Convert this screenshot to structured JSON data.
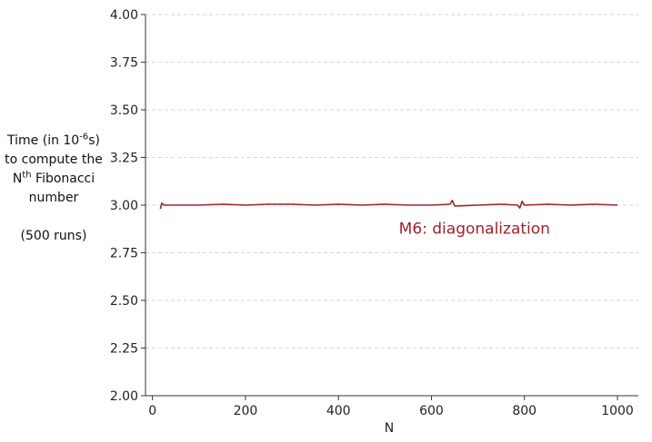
{
  "chart_data": {
    "type": "line",
    "title": "",
    "xlabel": "N",
    "ylabel": {
      "prefix": "Time (in 10",
      "exp": "-6",
      "suffix": "s) to compute the N",
      "nth": "th",
      "tail": "Fibonacci number",
      "runs": "(500 runs)"
    },
    "xlim": [
      -15,
      1045
    ],
    "ylim": [
      2.0,
      4.0
    ],
    "xticks": [
      0,
      200,
      400,
      600,
      800,
      1000
    ],
    "yticks": [
      "2.00",
      "2.25",
      "2.50",
      "2.75",
      "3.00",
      "3.25",
      "3.50",
      "3.75",
      "4.00"
    ],
    "grid": "horizontal dashed",
    "series": [
      {
        "name": "M6: diagonalization",
        "color": "#a1232b",
        "x": [
          17,
          20,
          25,
          50,
          100,
          150,
          200,
          250,
          300,
          350,
          400,
          450,
          500,
          550,
          600,
          640,
          645,
          650,
          700,
          750,
          785,
          790,
          795,
          800,
          850,
          900,
          950,
          1000
        ],
        "y": [
          2.98,
          3.01,
          3.0,
          3.0,
          3.0,
          3.005,
          3.0,
          3.005,
          3.005,
          3.0,
          3.005,
          3.0,
          3.005,
          3.0,
          3.0,
          3.005,
          3.025,
          2.995,
          3.0,
          3.005,
          3.0,
          2.985,
          3.02,
          3.0,
          3.005,
          3.0,
          3.005,
          3.0
        ]
      }
    ],
    "annotation": {
      "text": "M6: diagonalization",
      "x": 530,
      "y": 2.85
    }
  }
}
